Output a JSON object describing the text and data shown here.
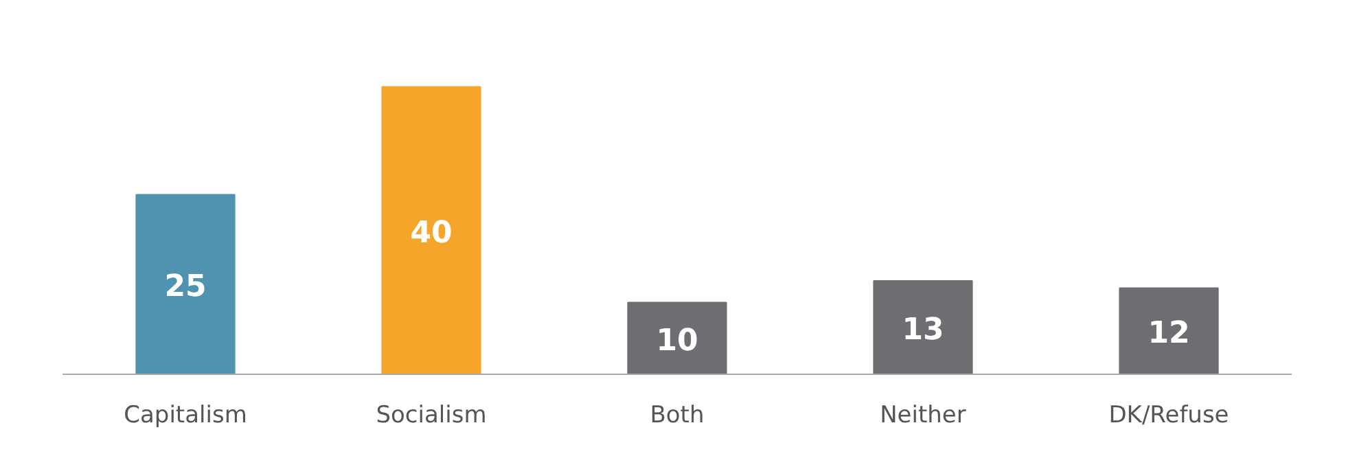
{
  "chart_data": {
    "type": "bar",
    "categories": [
      "Capitalism",
      "Socialism",
      "Both",
      "Neither",
      "DK/Refuse"
    ],
    "values": [
      25,
      40,
      10,
      13,
      12
    ],
    "colors": [
      "#4f93b0",
      "#f5a52a",
      "#6d6e71",
      "#6d6e71",
      "#6d6e71"
    ],
    "data_labels": true,
    "grid": false
  }
}
